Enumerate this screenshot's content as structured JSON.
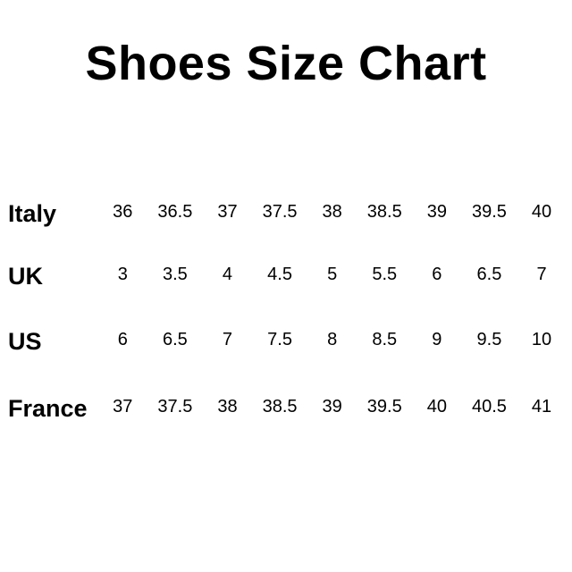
{
  "title": "Shoes Size Chart",
  "rows": [
    {
      "label": "Italy",
      "sizes": [
        "36",
        "36.5",
        "37",
        "37.5",
        "38",
        "38.5",
        "39",
        "39.5",
        "40"
      ]
    },
    {
      "label": "UK",
      "sizes": [
        "3",
        "3.5",
        "4",
        "4.5",
        "5",
        "5.5",
        "6",
        "6.5",
        "7"
      ]
    },
    {
      "label": "US",
      "sizes": [
        "6",
        "6.5",
        "7",
        "7.5",
        "8",
        "8.5",
        "9",
        "9.5",
        "10"
      ]
    },
    {
      "label": "France",
      "sizes": [
        "37",
        "37.5",
        "38",
        "38.5",
        "39",
        "39.5",
        "40",
        "40.5",
        "41"
      ]
    }
  ]
}
